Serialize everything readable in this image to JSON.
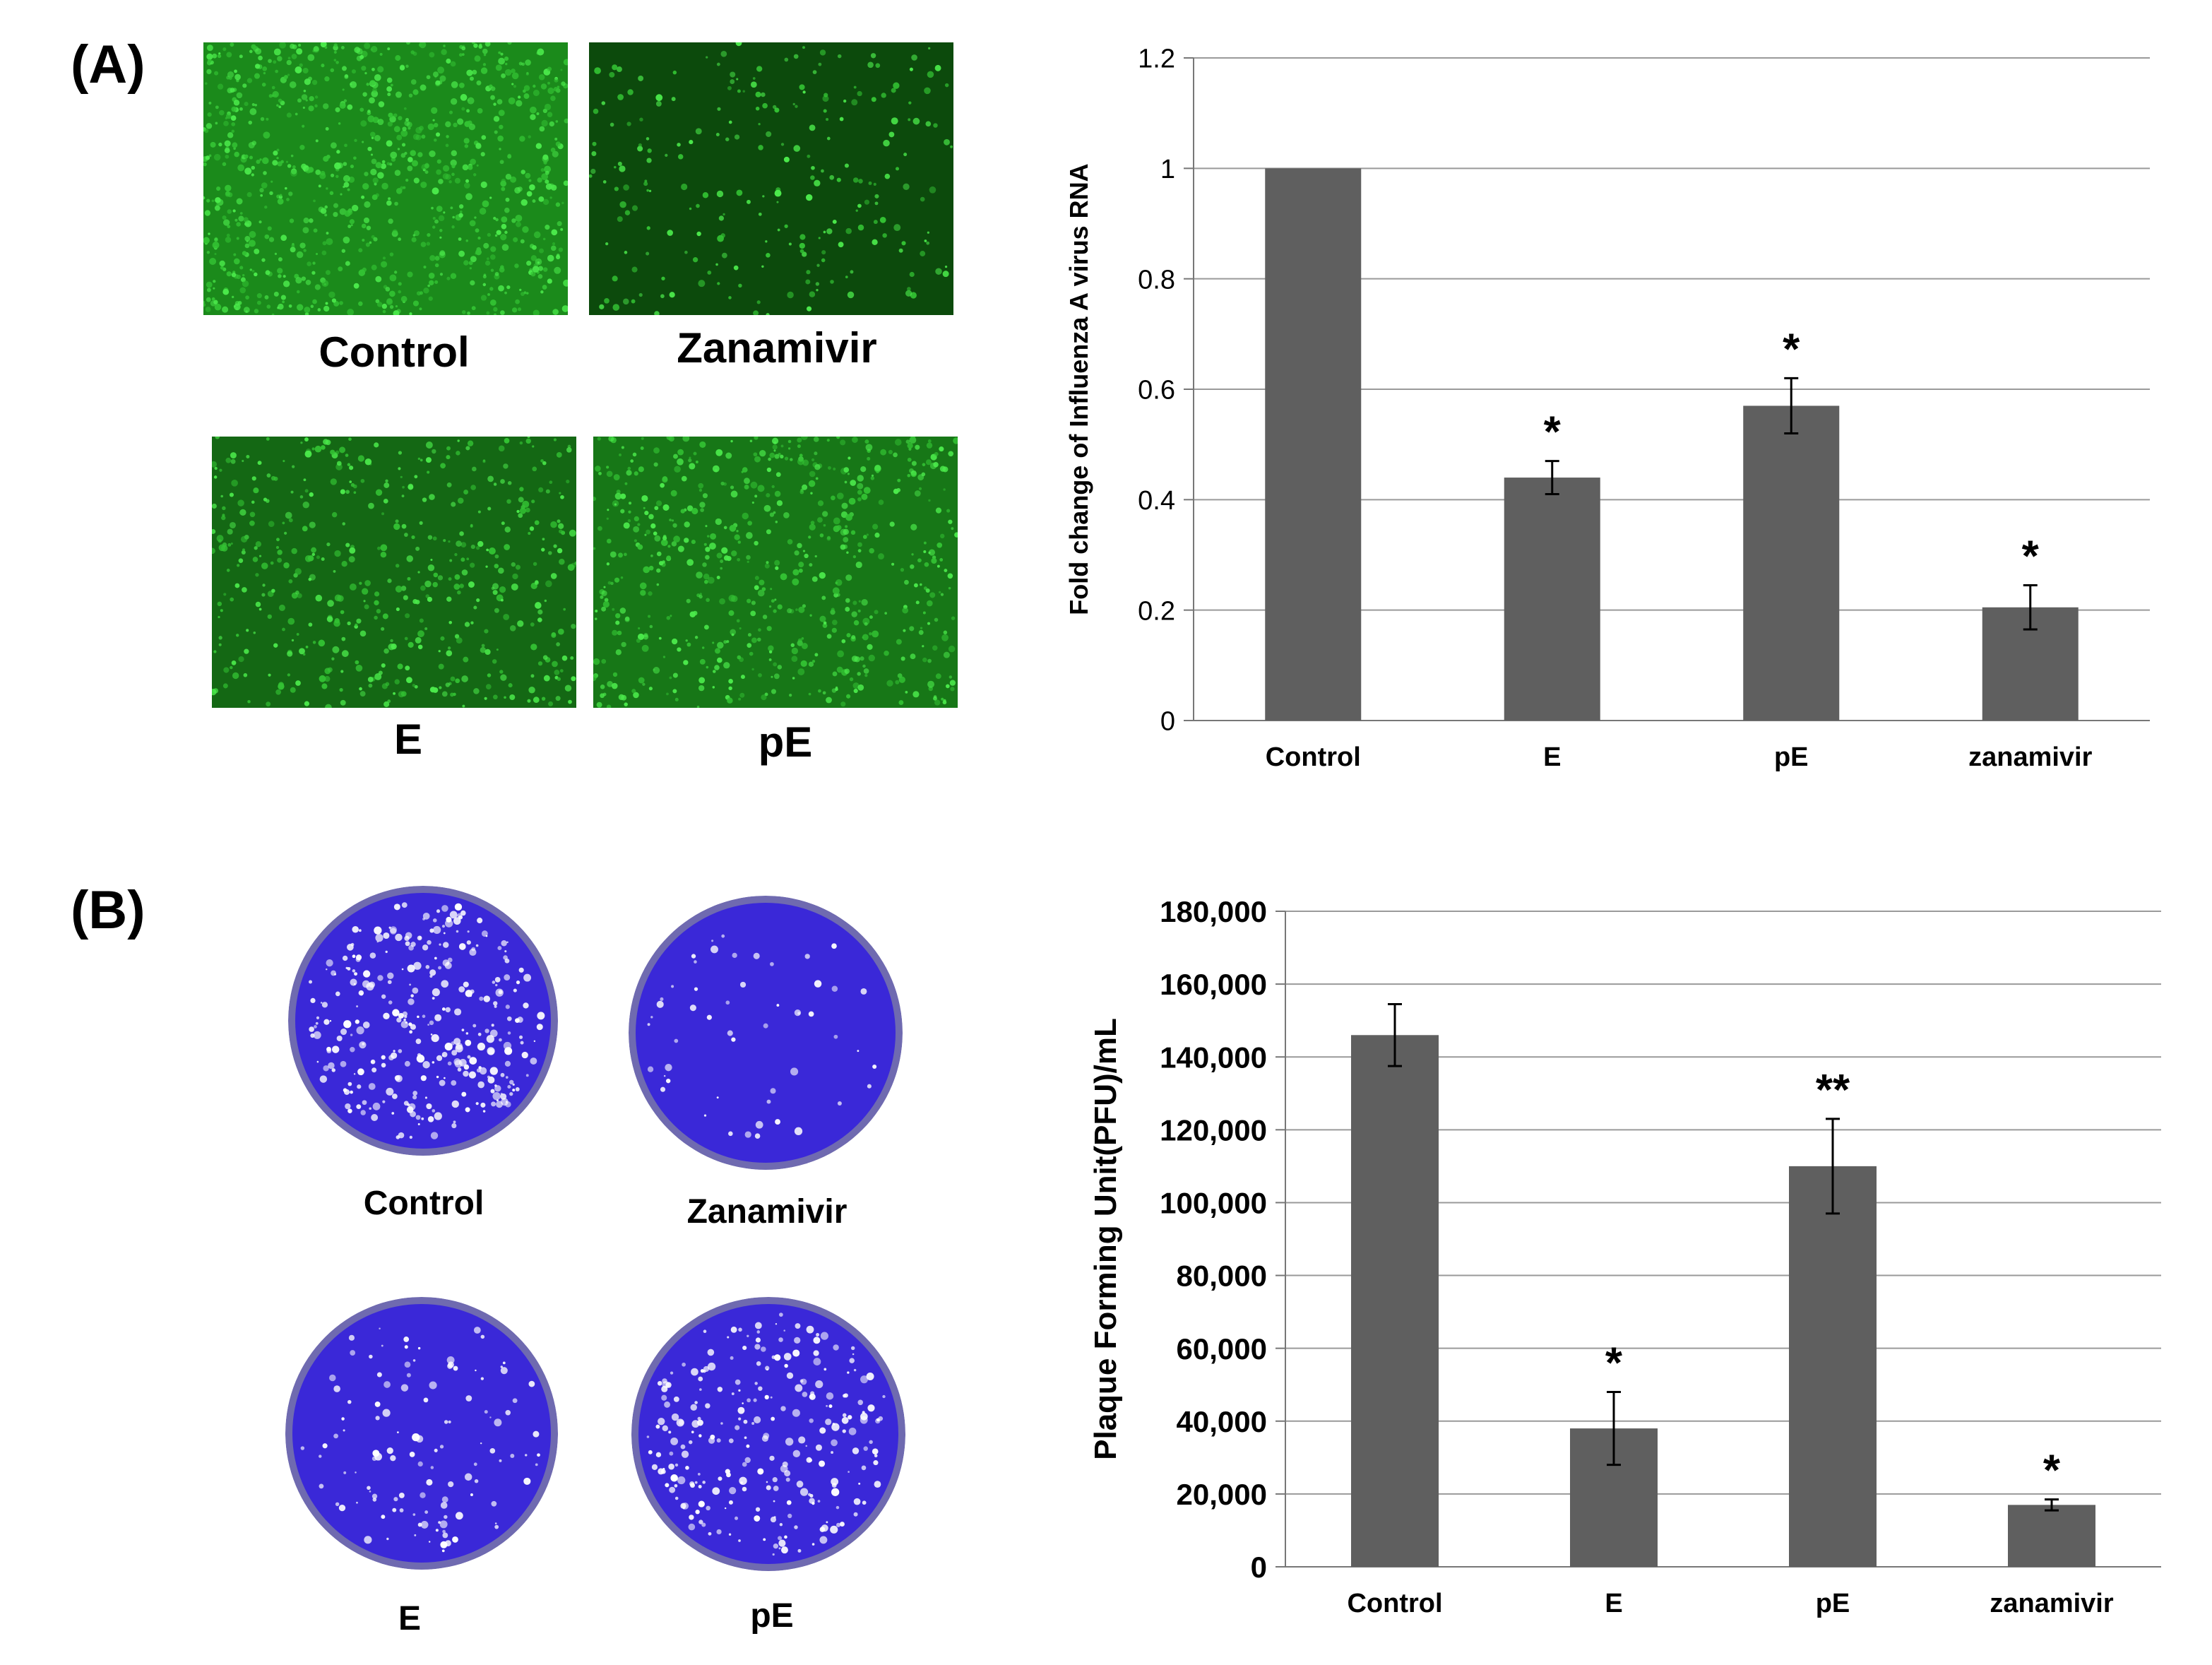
{
  "panel_a": {
    "label": "(A)",
    "images": [
      {
        "caption": "Control",
        "tone": "#1b8a1b",
        "density": 0.95
      },
      {
        "caption": "Zanamivir",
        "tone": "#0c4a0c",
        "density": 0.2
      },
      {
        "caption": "E",
        "tone": "#146814",
        "density": 0.5
      },
      {
        "caption": "pE",
        "tone": "#177717",
        "density": 0.65
      }
    ]
  },
  "panel_b": {
    "label": "(B)",
    "dishes": [
      {
        "caption": "Control",
        "density": 0.95
      },
      {
        "caption": "Zanamivir",
        "density": 0.1
      },
      {
        "caption": "E",
        "density": 0.3
      },
      {
        "caption": "pE",
        "density": 0.75
      }
    ]
  },
  "colors": {
    "bar": "#5f5f5f",
    "grid": "#9a9a9a",
    "plate": "#3a28d8",
    "plate_rim": "#6f6ab0"
  },
  "chart_data": [
    {
      "type": "bar",
      "categories": [
        "Control",
        "E",
        "pE",
        "zanamivir"
      ],
      "values": [
        1.0,
        0.44,
        0.57,
        0.205
      ],
      "errors": [
        0.0,
        0.03,
        0.05,
        0.04
      ],
      "significance": [
        "",
        "*",
        "*",
        "*"
      ],
      "ylabel": "Fold change of Influenza A virus  RNA",
      "ylim": [
        0,
        1.2
      ],
      "yticks": [
        0,
        0.2,
        0.4,
        0.6,
        0.8,
        1,
        1.2
      ],
      "ytick_labels": [
        "0",
        "0.2",
        "0.4",
        "0.6",
        "0.8",
        "1",
        "1.2"
      ],
      "grid": true
    },
    {
      "type": "bar",
      "categories": [
        "Control",
        "E",
        "pE",
        "zanamivir"
      ],
      "values": [
        146000,
        38000,
        110000,
        17000
      ],
      "errors": [
        8500,
        10000,
        13000,
        1500
      ],
      "significance": [
        "",
        "*",
        "**",
        "*"
      ],
      "ylabel": "Plaque Forming Unit(PFU)/mL",
      "ylim": [
        0,
        180000
      ],
      "yticks": [
        0,
        20000,
        40000,
        60000,
        80000,
        100000,
        120000,
        140000,
        160000,
        180000
      ],
      "ytick_labels": [
        "0",
        "20,000",
        "40,000",
        "60,000",
        "80,000",
        "100,000",
        "120,000",
        "140,000",
        "160,000",
        "180,000"
      ],
      "grid": true
    }
  ]
}
